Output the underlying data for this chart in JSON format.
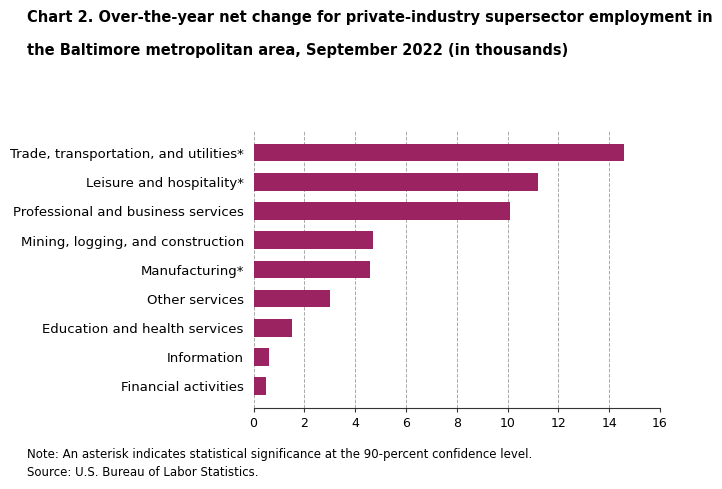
{
  "title_line1": "Chart 2. Over-the-year net change for private-industry supersector employment in",
  "title_line2": "the Baltimore metropolitan area, September 2022 (in thousands)",
  "categories": [
    "Financial activities",
    "Information",
    "Education and health services",
    "Other services",
    "Manufacturing*",
    "Mining, logging, and construction",
    "Professional and business services",
    "Leisure and hospitality*",
    "Trade, transportation, and utilities*"
  ],
  "values": [
    0.5,
    0.6,
    1.5,
    3.0,
    4.6,
    4.7,
    10.1,
    11.2,
    14.6
  ],
  "bar_color": "#9b2361",
  "xlim": [
    0,
    16
  ],
  "xticks": [
    0,
    2,
    4,
    6,
    8,
    10,
    12,
    14,
    16
  ],
  "note": "Note: An asterisk indicates statistical significance at the 90-percent confidence level.",
  "source": "Source: U.S. Bureau of Labor Statistics.",
  "title_fontsize": 10.5,
  "tick_fontsize": 9,
  "label_fontsize": 9.5,
  "note_fontsize": 8.5,
  "background_color": "#ffffff"
}
